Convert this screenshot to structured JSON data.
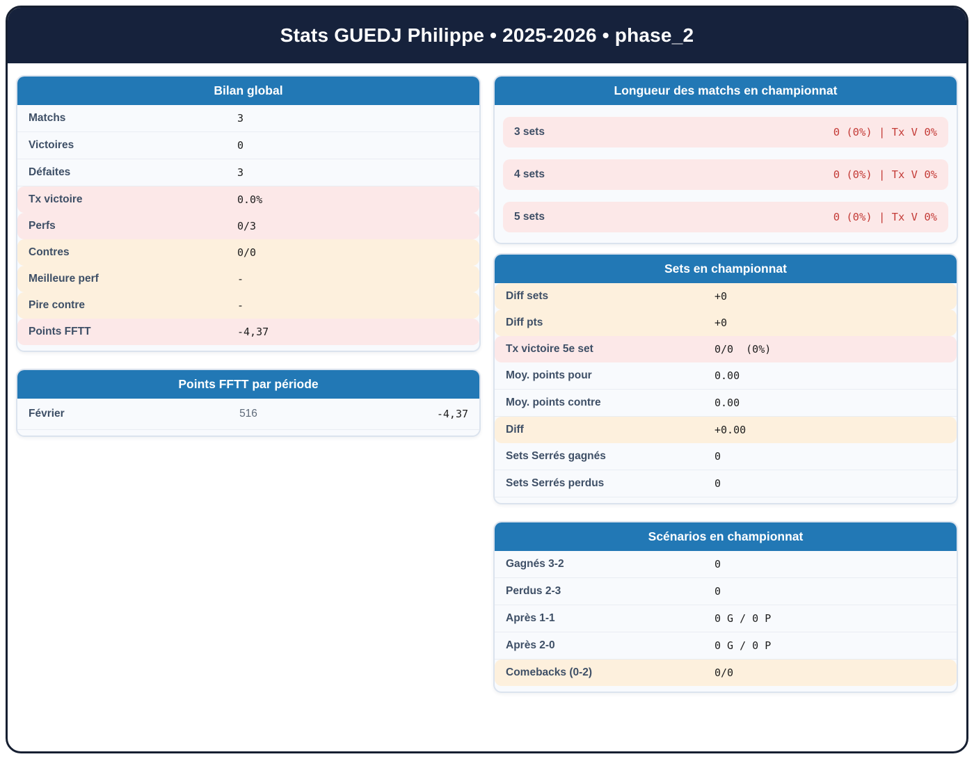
{
  "header": {
    "title": "Stats GUEDJ Philippe • 2025-2026 • phase_2"
  },
  "colors": {
    "header_navy": "#16223c",
    "accent_blue": "#2278b5",
    "highlight_pink": "#fce8e8",
    "highlight_cream": "#fdf0dd",
    "value_red": "#c43c38",
    "label_slate": "#3e4f66"
  },
  "cards": {
    "bilan": {
      "title": "Bilan global",
      "rows": [
        {
          "label": "Matchs",
          "value": "3",
          "highlight": "none"
        },
        {
          "label": "Victoires",
          "value": "0",
          "highlight": "none"
        },
        {
          "label": "Défaites",
          "value": "3",
          "highlight": "none"
        },
        {
          "label": "Tx victoire",
          "value": "0.0%",
          "highlight": "pink"
        },
        {
          "label": "Perfs",
          "value": "0/3",
          "highlight": "pink"
        },
        {
          "label": "Contres",
          "value": "0/0",
          "highlight": "cream"
        },
        {
          "label": "Meilleure perf",
          "value": "-",
          "highlight": "cream"
        },
        {
          "label": "Pire contre",
          "value": "-",
          "highlight": "cream"
        },
        {
          "label": "Points FFTT",
          "value": "-4,37",
          "highlight": "pink"
        }
      ]
    },
    "points_periode": {
      "title": "Points FFTT par période",
      "rows": [
        {
          "label": "Février",
          "mid": "516",
          "value": "-4,37"
        }
      ]
    },
    "longueur": {
      "title": "Longueur des matchs en championnat",
      "rows": [
        {
          "label": "3 sets",
          "value": "0 (0%) | Tx V 0%"
        },
        {
          "label": "4 sets",
          "value": "0 (0%) | Tx V 0%"
        },
        {
          "label": "5 sets",
          "value": "0 (0%) | Tx V 0%"
        }
      ]
    },
    "sets": {
      "title": "Sets en championnat",
      "rows": [
        {
          "label": "Diff sets",
          "value": "+0",
          "highlight": "cream"
        },
        {
          "label": "Diff pts",
          "value": "+0",
          "highlight": "cream"
        },
        {
          "label": "Tx victoire 5e set",
          "value": "0/0  (0%)",
          "highlight": "pink"
        },
        {
          "label": "Moy. points pour",
          "value": "0.00",
          "highlight": "none"
        },
        {
          "label": "Moy. points contre",
          "value": "0.00",
          "highlight": "none"
        },
        {
          "label": "Diff",
          "value": "+0.00",
          "highlight": "cream"
        },
        {
          "label": "Sets Serrés gagnés",
          "value": "0",
          "highlight": "none"
        },
        {
          "label": "Sets Serrés perdus",
          "value": "0",
          "highlight": "none"
        }
      ]
    },
    "scenarios": {
      "title": "Scénarios en championnat",
      "rows": [
        {
          "label": "Gagnés 3-2",
          "value": "0",
          "highlight": "none"
        },
        {
          "label": "Perdus 2-3",
          "value": "0",
          "highlight": "none"
        },
        {
          "label": "Après 1-1",
          "value": "0 G / 0 P",
          "highlight": "none"
        },
        {
          "label": "Après 2-0",
          "value": "0 G / 0 P",
          "highlight": "none"
        },
        {
          "label": "Comebacks (0-2)",
          "value": "0/0",
          "highlight": "cream"
        }
      ]
    }
  }
}
